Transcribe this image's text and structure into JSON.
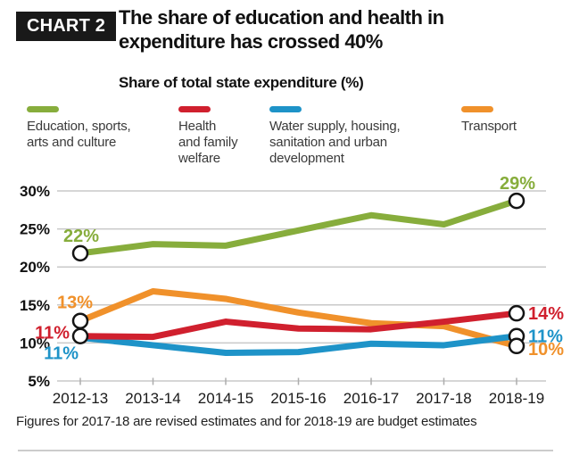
{
  "header": {
    "badge": "CHART 2",
    "title": "The share of education and health in\nexpenditure has crossed 40%",
    "subtitle": "Share of total state expenditure (%)"
  },
  "legend": {
    "items": [
      {
        "label": "Education, sports,\narts and culture"
      },
      {
        "label": "Health\nand family\nwelfare"
      },
      {
        "label": "Water supply, housing,\nsanitation and urban\ndevelopment"
      },
      {
        "label": "Transport"
      }
    ]
  },
  "chart_data": {
    "type": "line",
    "title": "The share of education and health in expenditure has crossed 40%",
    "subtitle": "Share of total state expenditure (%)",
    "categories": [
      "2012-13",
      "2013-14",
      "2014-15",
      "2015-16",
      "2016-17",
      "2017-18",
      "2018-19"
    ],
    "y_ticks": [
      "30%",
      "25%",
      "20%",
      "15%",
      "10%",
      "5%"
    ],
    "y_tick_values": [
      30,
      25,
      20,
      15,
      10,
      5
    ],
    "ylim": [
      5,
      32
    ],
    "grid": true,
    "legend_position": "top",
    "series": [
      {
        "name": "Education, sports, arts and culture",
        "color": "#87AD3C",
        "values": [
          21.8,
          23.0,
          22.8,
          24.8,
          26.8,
          25.6,
          28.7
        ],
        "start_label": "22%",
        "end_label": "29%",
        "start_marker": true
      },
      {
        "name": "Health and family welfare",
        "color": "#D0202E",
        "values": [
          10.9,
          10.8,
          12.8,
          11.9,
          11.8,
          12.8,
          13.9
        ],
        "start_label": "11%",
        "end_label": "14%",
        "start_marker": true
      },
      {
        "name": "Water supply, housing, sanitation and urban development",
        "color": "#1E93C8",
        "values": [
          10.7,
          9.7,
          8.7,
          8.8,
          9.9,
          9.7,
          10.9
        ],
        "start_label": "11%",
        "end_label": "11%",
        "start_marker": false
      },
      {
        "name": "Transport",
        "color": "#F0912B",
        "values": [
          12.9,
          16.8,
          15.8,
          14.0,
          12.6,
          12.2,
          9.6
        ],
        "start_label": "13%",
        "end_label": "10%",
        "start_marker": true
      }
    ],
    "marker_style": {
      "fill": "#FFFFFF",
      "stroke": "#141414"
    },
    "gridline_color": "#C9C9C9",
    "axis_text_color": "#111111"
  },
  "footnote": "Figures for 2017-18 are revised estimates and for 2018-19 are budget estimates"
}
